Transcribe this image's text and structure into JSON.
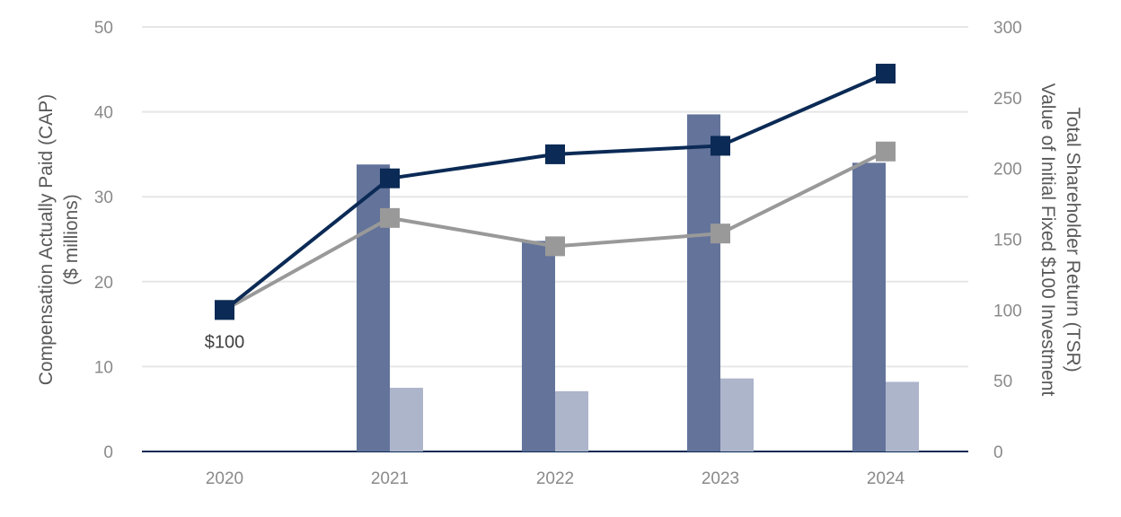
{
  "chart_data": {
    "type": "bar",
    "categories": [
      "2020",
      "2021",
      "2022",
      "2023",
      "2024"
    ],
    "y_left": {
      "label_line1": "Compensation Actually Paid (CAP)",
      "label_line2": "($ millions)",
      "ticks": [
        "0",
        "10",
        "20",
        "30",
        "40",
        "50"
      ],
      "lim": [
        0,
        50
      ]
    },
    "y_right": {
      "label_line1": "Total Shareholder Return (TSR)",
      "label_line2": "Value of Initial Fixed $100 Investment",
      "ticks": [
        "0",
        "50",
        "100",
        "150",
        "200",
        "250",
        "300"
      ],
      "lim": [
        0,
        300
      ]
    },
    "bar_series": [
      {
        "axis": "left",
        "color": "#63739a",
        "values": [
          null,
          33.8,
          24.8,
          39.7,
          34.0
        ]
      },
      {
        "axis": "left",
        "color": "#adb5cb",
        "values": [
          null,
          7.5,
          7.1,
          8.6,
          8.2
        ]
      }
    ],
    "line_series": [
      {
        "axis": "right",
        "color": "#0b2a55",
        "values": [
          100,
          193,
          210,
          216,
          267
        ]
      },
      {
        "axis": "right",
        "color": "#999999",
        "values": [
          100,
          165,
          145,
          154,
          212
        ]
      }
    ],
    "annotation": {
      "text": "$100",
      "category": "2020"
    },
    "grid": true
  }
}
